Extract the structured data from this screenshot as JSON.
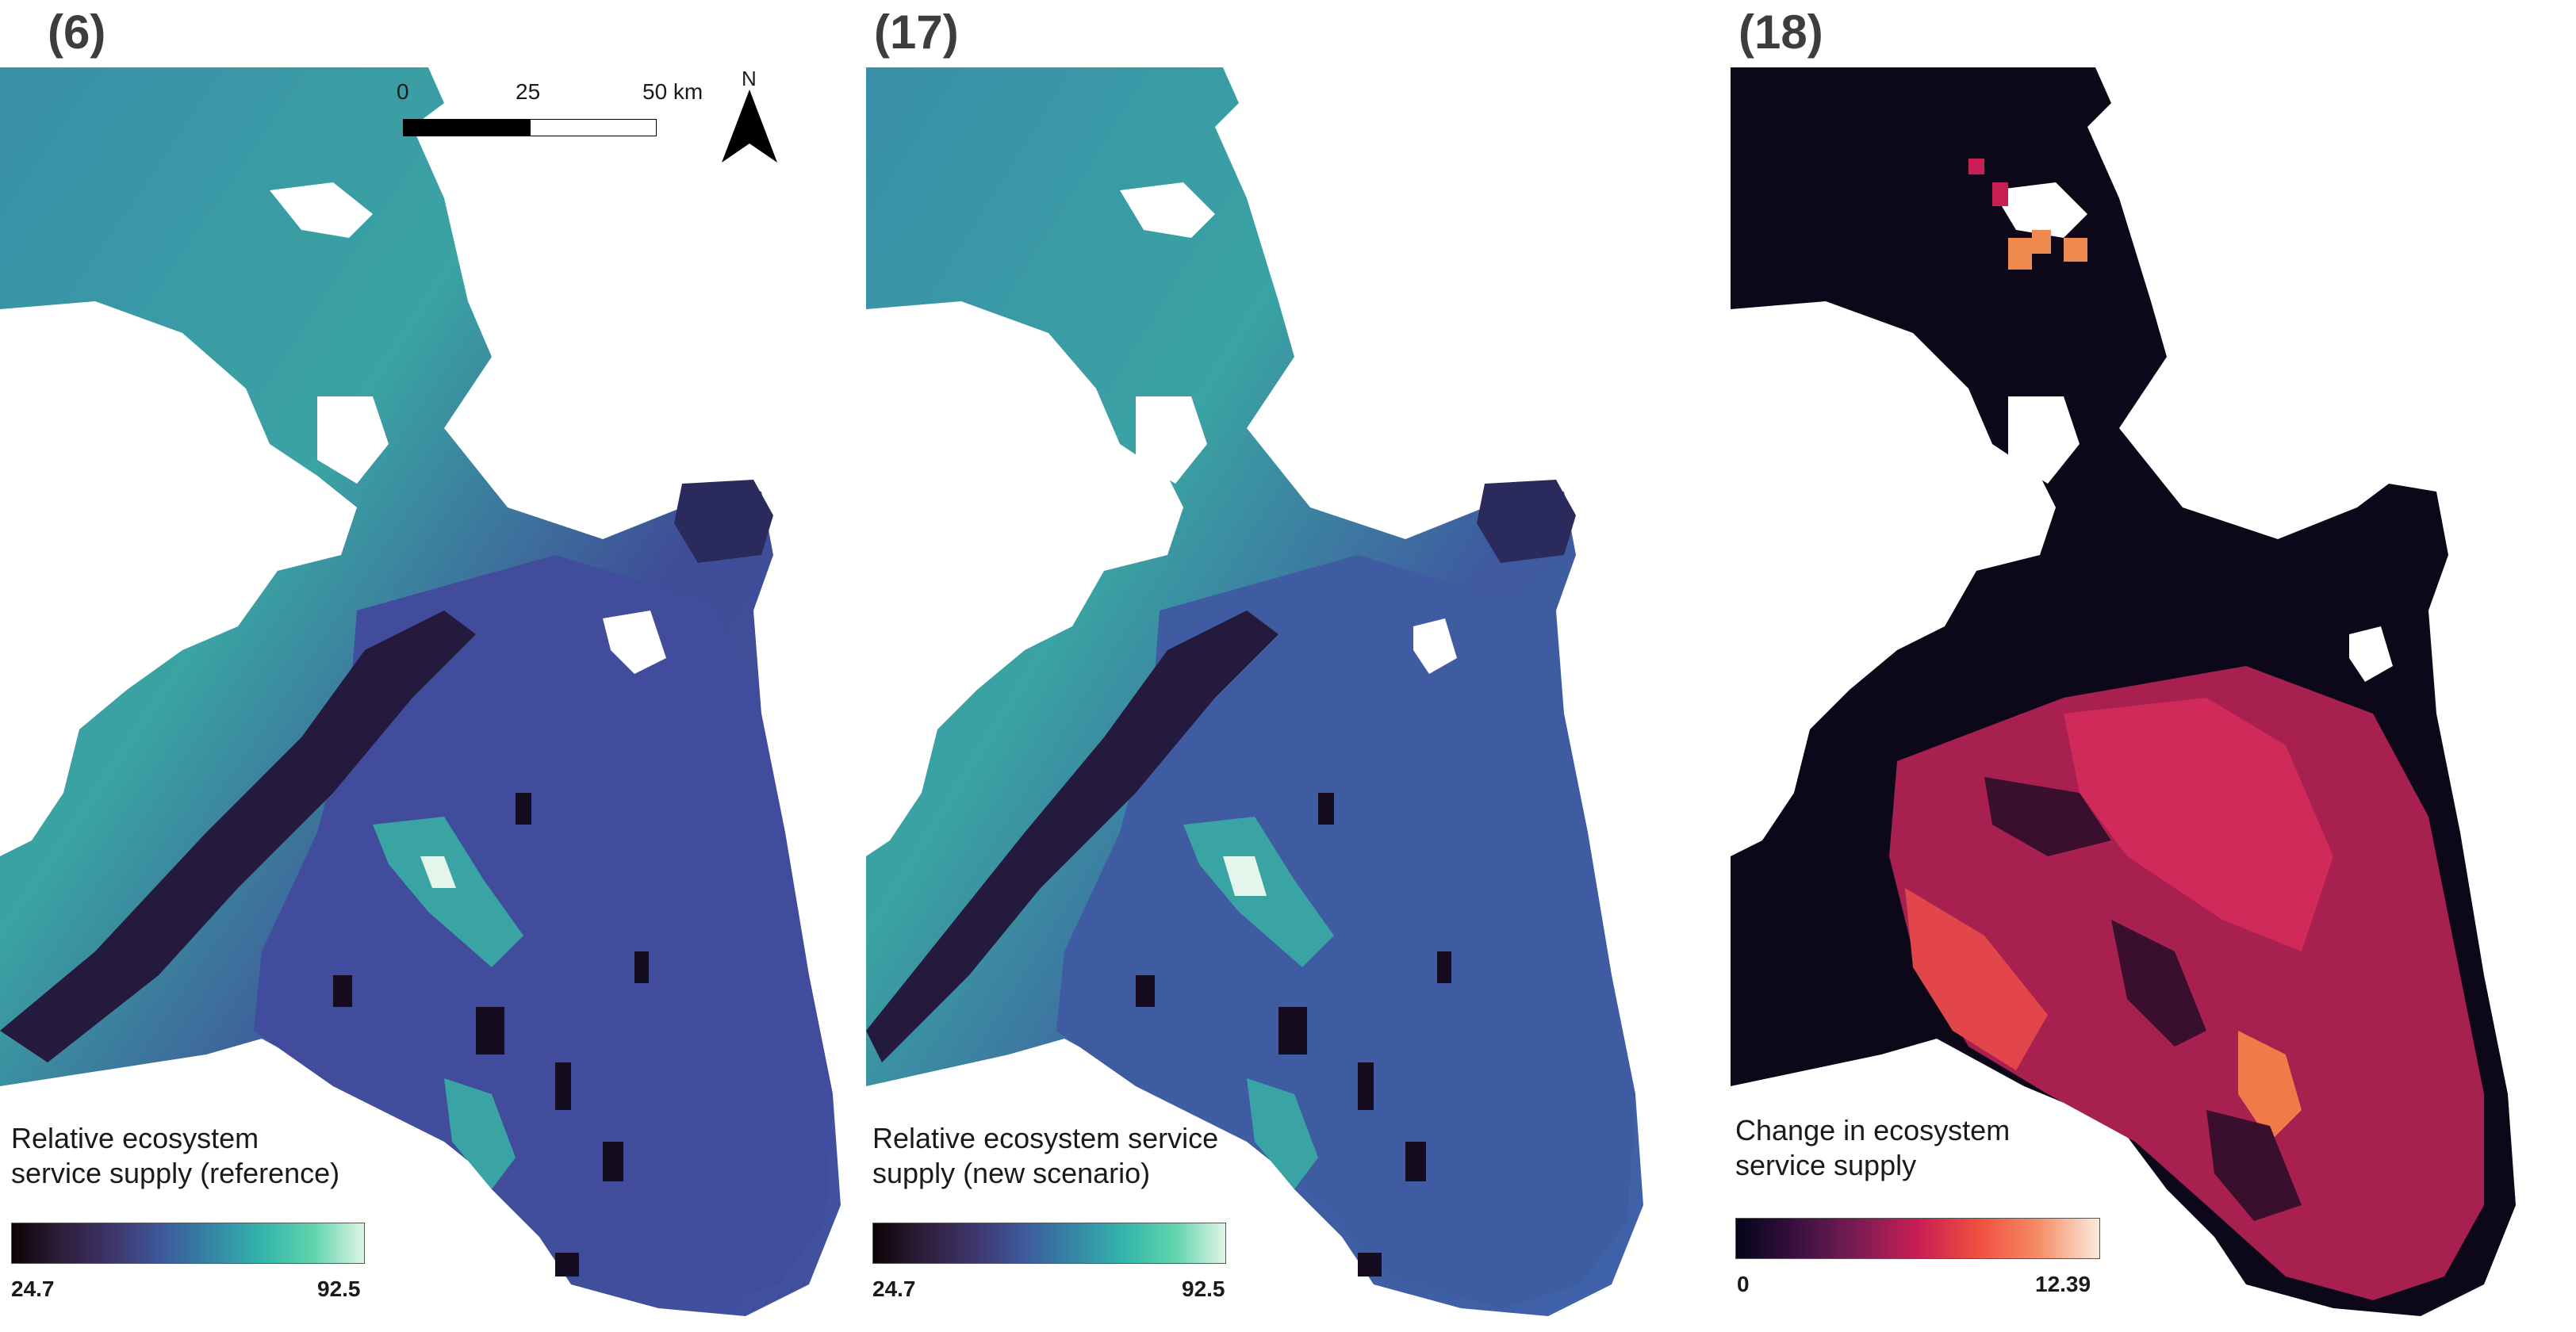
{
  "panels": [
    {
      "label": "(6)",
      "legend_title": "Relative ecosystem\nservice supply (reference)",
      "legend_min": "24.7",
      "legend_max": "92.5"
    },
    {
      "label": "(17)",
      "legend_title": "Relative ecosystem service\nsupply (new scenario)",
      "legend_min": "24.7",
      "legend_max": "92.5"
    },
    {
      "label": "(18)",
      "legend_title": "Change in ecosystem\n service supply",
      "legend_min": "0",
      "legend_max": "12.39"
    }
  ],
  "scale_bar": {
    "tick_0": "0",
    "tick_1": "25",
    "tick_2": "50 km"
  },
  "north_arrow": {
    "label": "N"
  },
  "colors": {
    "mako_low": "#1a0f1f",
    "mako_mid": "#3f4f9a",
    "mako_high": "#e4f6ec",
    "rocket_low": "#0d0818",
    "rocket_mid": "#c81e54",
    "rocket_high": "#faebdd"
  }
}
